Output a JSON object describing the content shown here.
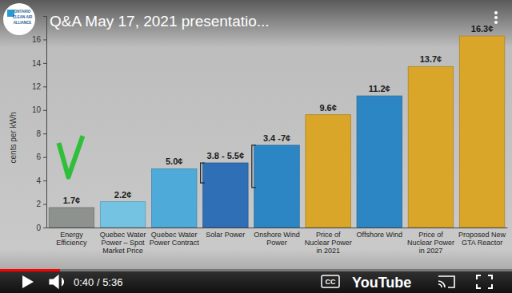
{
  "chart_data": {
    "type": "bar",
    "y_label": "cents per kWh",
    "categories": [
      "Energy Efficiency",
      "Quebec Water Power – Spot Market Price",
      "Quebec Water Power Contract",
      "Solar Power",
      "Onshore Wind Power",
      "Price of Nuclear Power in 2021",
      "Offshore Wind",
      "Price of Nuclear Power in 2027",
      "Proposed New GTA Reactor"
    ],
    "values": [
      1.7,
      2.2,
      5.0,
      5.5,
      7,
      9.6,
      11.2,
      13.7,
      16.3
    ],
    "range_low": [
      null,
      null,
      null,
      3.8,
      3.4,
      null,
      null,
      null,
      null
    ],
    "value_labels": [
      "1.7¢",
      "2.2¢",
      "5.0¢",
      "3.8 - 5.5¢",
      "3.4 -7¢",
      "9.6¢",
      "11.2¢",
      "13.7¢",
      "16.3¢"
    ],
    "colors": [
      "#8d928e",
      "#74c3e2",
      "#4eaad8",
      "#2f6fb5",
      "#2c86c4",
      "#d9a62a",
      "#2c86c4",
      "#d9a62a",
      "#d9a62a"
    ],
    "ylim": [
      0,
      18
    ],
    "yticks": [
      0,
      2,
      4,
      6,
      8,
      10,
      12,
      14,
      16
    ],
    "data_labels": true
  },
  "player": {
    "title": "Q&A May 17, 2021 presentatio...",
    "time": "0:40 / 5:36",
    "captions": "CC",
    "brand": "YouTube",
    "logo": [
      "ONTARIO",
      "CLEAN AIR",
      "ALLIANCE"
    ]
  }
}
